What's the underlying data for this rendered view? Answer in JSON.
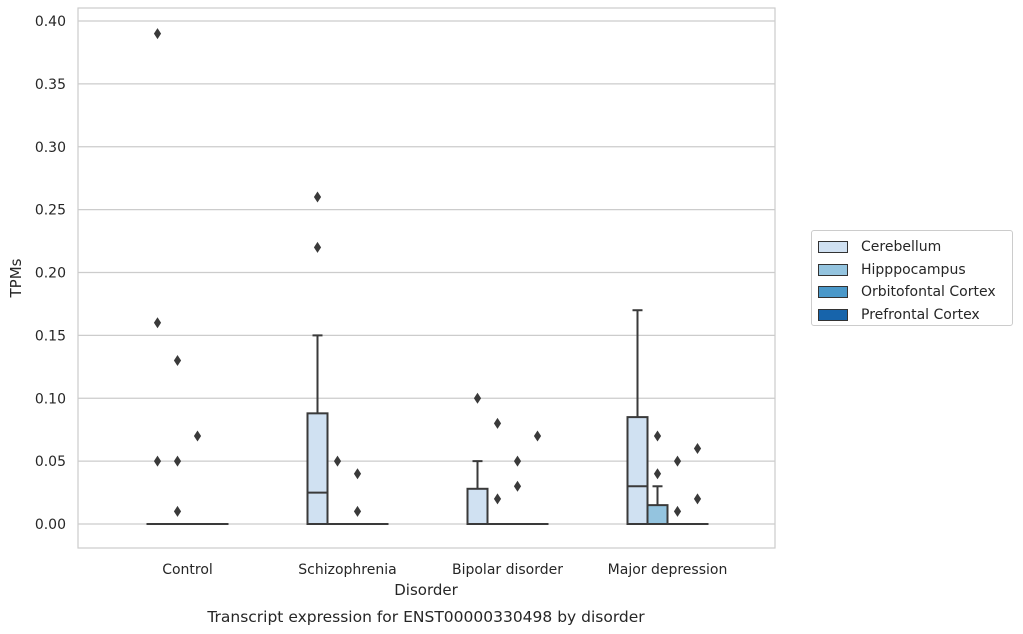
{
  "chart_data": {
    "type": "box",
    "title": "Transcript expression for ENST00000330498 by disorder",
    "xlabel": "Disorder",
    "ylabel": "TPMs",
    "ylim": [
      -0.019,
      0.41
    ],
    "yticks": [
      "0.00",
      "0.05",
      "0.10",
      "0.15",
      "0.20",
      "0.25",
      "0.30",
      "0.35",
      "0.40"
    ],
    "grid": true,
    "legend_position": "right",
    "categories": [
      "Control",
      "Schizophrenia",
      "Bipolar disorder",
      "Major depression"
    ],
    "series": [
      {
        "name": "Cerebellum",
        "color": "#d0e1f2",
        "boxes": [
          {
            "q1": 0,
            "median": 0,
            "q3": 0,
            "whisker_low": 0,
            "whisker_high": 0,
            "outliers": [
              0.39,
              0.16,
              0.05
            ]
          },
          {
            "q1": 0,
            "median": 0.025,
            "q3": 0.088,
            "whisker_low": 0,
            "whisker_high": 0.15,
            "outliers": [
              0.26,
              0.22
            ]
          },
          {
            "q1": 0,
            "median": 0,
            "q3": 0.028,
            "whisker_low": 0,
            "whisker_high": 0.05,
            "outliers": [
              0.1
            ]
          },
          {
            "q1": 0,
            "median": 0.03,
            "q3": 0.085,
            "whisker_low": 0,
            "whisker_high": 0.17,
            "outliers": []
          }
        ]
      },
      {
        "name": "Hipppocampus",
        "color": "#94c4df",
        "boxes": [
          {
            "q1": 0,
            "median": 0,
            "q3": 0,
            "whisker_low": 0,
            "whisker_high": 0,
            "outliers": [
              0.13,
              0.05,
              0.01
            ]
          },
          {
            "q1": 0,
            "median": 0,
            "q3": 0,
            "whisker_low": 0,
            "whisker_high": 0,
            "outliers": [
              0.05
            ]
          },
          {
            "q1": 0,
            "median": 0,
            "q3": 0,
            "whisker_low": 0,
            "whisker_high": 0,
            "outliers": [
              0.08,
              0.02
            ]
          },
          {
            "q1": 0,
            "median": 0,
            "q3": 0.015,
            "whisker_low": 0,
            "whisker_high": 0.03,
            "outliers": [
              0.07,
              0.04
            ]
          }
        ]
      },
      {
        "name": "Orbitofontal Cortex",
        "color": "#4a98c9",
        "boxes": [
          {
            "q1": 0,
            "median": 0,
            "q3": 0,
            "whisker_low": 0,
            "whisker_high": 0,
            "outliers": [
              0.07
            ]
          },
          {
            "q1": 0,
            "median": 0,
            "q3": 0,
            "whisker_low": 0,
            "whisker_high": 0,
            "outliers": [
              0.04,
              0.01
            ]
          },
          {
            "q1": 0,
            "median": 0,
            "q3": 0,
            "whisker_low": 0,
            "whisker_high": 0,
            "outliers": [
              0.05,
              0.03
            ]
          },
          {
            "q1": 0,
            "median": 0,
            "q3": 0,
            "whisker_low": 0,
            "whisker_high": 0,
            "outliers": [
              0.05,
              0.01
            ]
          }
        ]
      },
      {
        "name": "Prefrontal Cortex",
        "color": "#1764ab",
        "boxes": [
          {
            "q1": 0,
            "median": 0,
            "q3": 0,
            "whisker_low": 0,
            "whisker_high": 0,
            "outliers": []
          },
          {
            "q1": 0,
            "median": 0,
            "q3": 0,
            "whisker_low": 0,
            "whisker_high": 0,
            "outliers": []
          },
          {
            "q1": 0,
            "median": 0,
            "q3": 0,
            "whisker_low": 0,
            "whisker_high": 0,
            "outliers": [
              0.07
            ]
          },
          {
            "q1": 0,
            "median": 0,
            "q3": 0,
            "whisker_low": 0,
            "whisker_high": 0,
            "outliers": [
              0.06,
              0.02
            ]
          }
        ]
      }
    ]
  }
}
